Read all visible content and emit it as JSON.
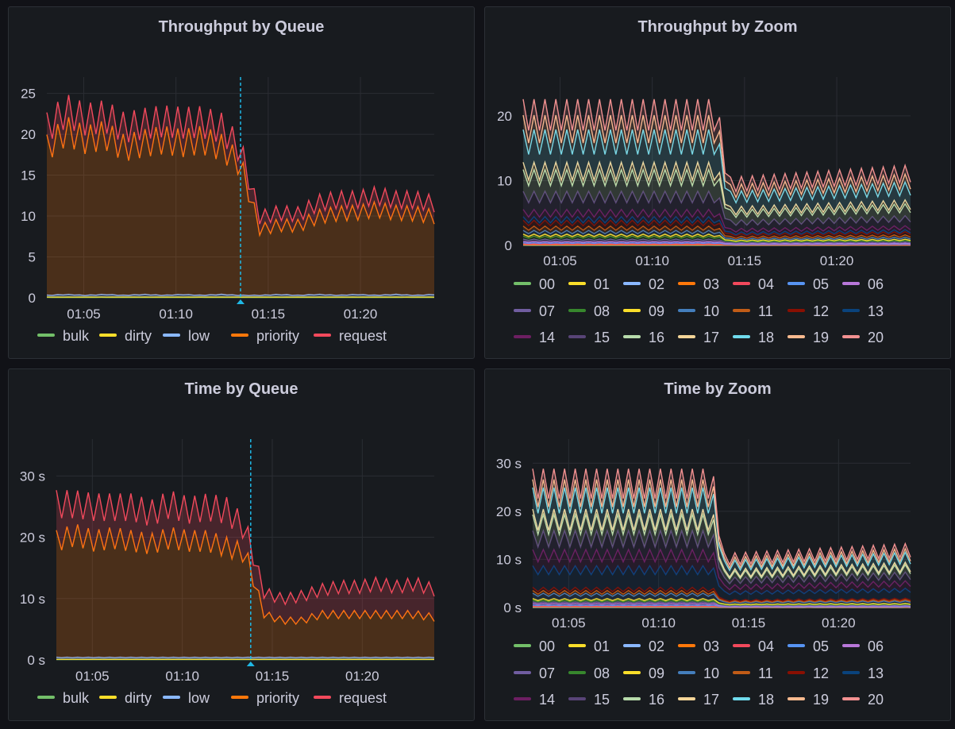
{
  "colors": {
    "bulk": "#73bf69",
    "dirty": "#fade2a",
    "low": "#8ab8ff",
    "priority": "#ff780a",
    "request": "#f2495c",
    "zoom": [
      "#73bf69",
      "#fade2a",
      "#8ab8ff",
      "#ff780a",
      "#f2495c",
      "#5794f2",
      "#b877d9",
      "#705da0",
      "#37872d",
      "#fade2a",
      "#447ebc",
      "#c15c17",
      "#890f02",
      "#0a437c",
      "#6d1f62",
      "#584477",
      "#b7dbab",
      "#f4d598",
      "#70dbed",
      "#f9ba8f",
      "#f29191"
    ]
  },
  "panels": [
    {
      "title": "Throughput by Queue",
      "chart_data": {
        "type": "area",
        "stacked": true,
        "x_start": "01:03",
        "x_end": "01:24",
        "xticks": [
          "01:05",
          "01:10",
          "01:15",
          "01:20"
        ],
        "yticks": [
          "0",
          "5",
          "10",
          "15",
          "20",
          "25"
        ],
        "ylim": [
          0,
          27
        ],
        "annotation_time": "01:13.5",
        "legend": [
          "bulk",
          "dirty",
          "low",
          "priority",
          "request"
        ],
        "series": [
          {
            "name": "bulk",
            "values": [
              0.05,
              0.05,
              0.05,
              0.05,
              0.05,
              0.05,
              0.05,
              0.05,
              0.05,
              0.05,
              0.05,
              0.05,
              0.05,
              0.05,
              0.05,
              0.05,
              0.05,
              0.05,
              0.05,
              0.05,
              0.05
            ]
          },
          {
            "name": "dirty",
            "values": [
              0.05,
              0.05,
              0.05,
              0.05,
              0.05,
              0.05,
              0.05,
              0.05,
              0.05,
              0.05,
              0.05,
              0.05,
              0.05,
              0.05,
              0.05,
              0.05,
              0.05,
              0.05,
              0.05,
              0.05,
              0.05
            ]
          },
          {
            "name": "low",
            "values": [
              0.2,
              0.3,
              0.2,
              0.3,
              0.2,
              0.3,
              0.2,
              0.3,
              0.2,
              0.3,
              0.2,
              0.2,
              0.3,
              0.2,
              0.3,
              0.2,
              0.3,
              0.2,
              0.3,
              0.2,
              0.3
            ]
          },
          {
            "name": "priority",
            "values": [
              18,
              20,
              19,
              19.5,
              18,
              18.5,
              19,
              18.5,
              19,
              18,
              16,
              8,
              8.5,
              8.5,
              9.5,
              10,
              10,
              10.5,
              10,
              10,
              9.5
            ]
          },
          {
            "name": "request",
            "values": [
              2.5,
              2.5,
              2.5,
              2.3,
              2.5,
              2.4,
              2.3,
              2.5,
              2.2,
              2.4,
              1.8,
              1.5,
              1.5,
              1.4,
              1.7,
              1.7,
              1.6,
              1.7,
              1.6,
              1.7,
              1.6
            ]
          }
        ]
      }
    },
    {
      "title": "Throughput by Zoom",
      "chart_data": {
        "type": "area",
        "stacked": true,
        "x_start": "01:03",
        "x_end": "01:24",
        "xticks": [
          "01:05",
          "01:10",
          "01:15",
          "01:20"
        ],
        "yticks": [
          "0",
          "10",
          "20"
        ],
        "ylim": [
          0,
          26
        ],
        "legend": [
          "00",
          "01",
          "02",
          "03",
          "04",
          "05",
          "06",
          "07",
          "08",
          "09",
          "10",
          "11",
          "12",
          "13",
          "14",
          "15",
          "16",
          "17",
          "18",
          "19",
          "20"
        ],
        "series_pattern": {
          "before": [
            0.02,
            0.02,
            0.02,
            0.05,
            0.1,
            0.15,
            0.2,
            0.3,
            0.4,
            0.3,
            0.5,
            0.6,
            0.8,
            0.5,
            1.0,
            2.5,
            3.0,
            1.0,
            4.5,
            2.0,
            2.2
          ],
          "scale_before": 1.0,
          "scale_after": 0.5,
          "drop_time": "01:13.5"
        }
      }
    },
    {
      "title": "Time by Queue",
      "chart_data": {
        "type": "area",
        "stacked": true,
        "x_start": "01:03",
        "x_end": "01:24",
        "xticks": [
          "01:05",
          "01:10",
          "01:15",
          "01:20"
        ],
        "yticks": [
          "0 s",
          "10 s",
          "20 s",
          "30 s"
        ],
        "ylim": [
          0,
          36
        ],
        "annotation_time": "01:13.8",
        "legend": [
          "bulk",
          "dirty",
          "low",
          "priority",
          "request"
        ],
        "series": [
          {
            "name": "bulk",
            "values": [
              0.05,
              0.05,
              0.05,
              0.05,
              0.05,
              0.05,
              0.05,
              0.05,
              0.05,
              0.05,
              0.05,
              0.05,
              0.05,
              0.05,
              0.05,
              0.05,
              0.05,
              0.05,
              0.05,
              0.05,
              0.05
            ]
          },
          {
            "name": "dirty",
            "values": [
              0.05,
              0.05,
              0.05,
              0.05,
              0.05,
              0.05,
              0.05,
              0.05,
              0.05,
              0.05,
              0.05,
              0.05,
              0.05,
              0.05,
              0.05,
              0.05,
              0.05,
              0.05,
              0.05,
              0.05,
              0.05
            ]
          },
          {
            "name": "low",
            "values": [
              0.3,
              0.3,
              0.3,
              0.3,
              0.3,
              0.3,
              0.3,
              0.3,
              0.3,
              0.3,
              0.3,
              0.3,
              0.3,
              0.3,
              0.3,
              0.3,
              0.3,
              0.3,
              0.3,
              0.3,
              0.3
            ]
          },
          {
            "name": "priority",
            "values": [
              19,
              20,
              19,
              19.5,
              19,
              18.5,
              19.5,
              19,
              19,
              18,
              17,
              7,
              6,
              6,
              7,
              7,
              7,
              7,
              7,
              7,
              6.5
            ]
          },
          {
            "name": "request",
            "values": [
              6,
              5,
              5.5,
              5,
              5.5,
              5,
              5.5,
              5,
              5.5,
              6,
              4,
              3.5,
              3.5,
              4,
              4,
              4.5,
              4.5,
              5,
              4.5,
              5,
              4.5
            ]
          }
        ]
      }
    },
    {
      "title": "Time by Zoom",
      "chart_data": {
        "type": "area",
        "stacked": true,
        "x_start": "01:03",
        "x_end": "01:24",
        "xticks": [
          "01:05",
          "01:10",
          "01:15",
          "01:20"
        ],
        "yticks": [
          "0 s",
          "10 s",
          "20 s",
          "30 s"
        ],
        "ylim": [
          0,
          35
        ],
        "legend": [
          "00",
          "01",
          "02",
          "03",
          "04",
          "05",
          "06",
          "07",
          "08",
          "09",
          "10",
          "11",
          "12",
          "13",
          "14",
          "15",
          "16",
          "17",
          "18",
          "19",
          "20"
        ],
        "series_pattern": {
          "before": [
            0.02,
            0.02,
            0.02,
            0.1,
            0.1,
            0.2,
            0.3,
            0.3,
            0.3,
            0.3,
            1.0,
            0.5,
            0.6,
            4.0,
            3.0,
            3.5,
            3.0,
            1.0,
            4.0,
            1.5,
            2.0
          ],
          "scale_before": 1.0,
          "scale_after": 0.42,
          "drop_time": "01:13"
        }
      }
    }
  ]
}
